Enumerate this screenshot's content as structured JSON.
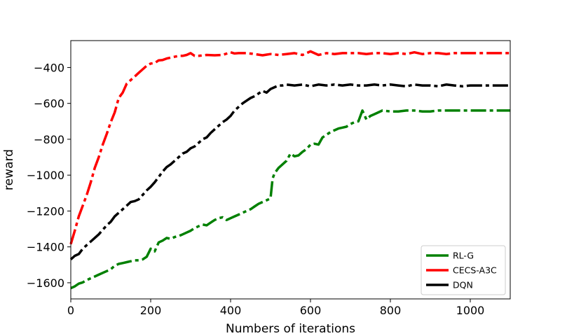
{
  "chart_data": {
    "type": "line",
    "title": "",
    "xlabel": "Numbers of iterations",
    "ylabel": "reward",
    "xlim": [
      0,
      1100
    ],
    "ylim": [
      -1690,
      -250
    ],
    "xticks": [
      0,
      200,
      400,
      600,
      800,
      1000
    ],
    "yticks": [
      -1600,
      -1400,
      -1200,
      -1000,
      -800,
      -600,
      -400
    ],
    "grid": false,
    "legend_position": "lower-right",
    "series": [
      {
        "name": "RL-G",
        "color": "#008000",
        "x": [
          0,
          10,
          20,
          30,
          40,
          50,
          60,
          70,
          80,
          90,
          100,
          110,
          120,
          130,
          140,
          150,
          160,
          170,
          180,
          190,
          200,
          210,
          220,
          230,
          240,
          250,
          260,
          270,
          280,
          290,
          300,
          310,
          320,
          330,
          340,
          350,
          360,
          370,
          380,
          390,
          400,
          410,
          420,
          430,
          440,
          450,
          460,
          470,
          480,
          490,
          500,
          505,
          510,
          520,
          530,
          540,
          550,
          560,
          570,
          580,
          590,
          600,
          610,
          620,
          630,
          640,
          650,
          660,
          670,
          680,
          690,
          700,
          710,
          720,
          730,
          740,
          750,
          760,
          770,
          780,
          800,
          820,
          840,
          860,
          880,
          900,
          920,
          940,
          960,
          980,
          1000,
          1020,
          1040,
          1060,
          1080,
          1100
        ],
        "values": [
          -1630,
          -1620,
          -1605,
          -1598,
          -1585,
          -1575,
          -1565,
          -1555,
          -1545,
          -1535,
          -1525,
          -1505,
          -1495,
          -1490,
          -1485,
          -1480,
          -1475,
          -1475,
          -1470,
          -1455,
          -1410,
          -1425,
          -1375,
          -1365,
          -1350,
          -1355,
          -1345,
          -1340,
          -1330,
          -1320,
          -1310,
          -1295,
          -1285,
          -1275,
          -1280,
          -1265,
          -1250,
          -1240,
          -1235,
          -1250,
          -1240,
          -1230,
          -1220,
          -1210,
          -1200,
          -1190,
          -1175,
          -1160,
          -1150,
          -1140,
          -1130,
          -1020,
          -990,
          -960,
          -940,
          -920,
          -880,
          -895,
          -890,
          -870,
          -855,
          -830,
          -825,
          -830,
          -790,
          -775,
          -760,
          -750,
          -740,
          -735,
          -730,
          -715,
          -705,
          -700,
          -640,
          -690,
          -670,
          -660,
          -650,
          -640,
          -645,
          -645,
          -640,
          -640,
          -645,
          -645,
          -640,
          -640,
          -640,
          -640,
          -640,
          -640,
          -640,
          -640,
          -640,
          -640
        ]
      },
      {
        "name": "CECS-A3C",
        "color": "#ff0000",
        "x": [
          0,
          10,
          20,
          30,
          40,
          50,
          60,
          70,
          80,
          90,
          100,
          110,
          120,
          130,
          140,
          150,
          160,
          170,
          180,
          190,
          200,
          210,
          220,
          230,
          240,
          250,
          260,
          270,
          280,
          290,
          300,
          310,
          320,
          340,
          360,
          380,
          400,
          410,
          420,
          440,
          460,
          480,
          500,
          520,
          540,
          560,
          580,
          600,
          620,
          640,
          660,
          680,
          700,
          720,
          740,
          760,
          780,
          800,
          820,
          840,
          860,
          880,
          900,
          920,
          940,
          960,
          980,
          1000,
          1020,
          1040,
          1060,
          1080,
          1100
        ],
        "values": [
          -1385,
          -1310,
          -1230,
          -1170,
          -1110,
          -1040,
          -960,
          -900,
          -830,
          -770,
          -705,
          -650,
          -570,
          -540,
          -490,
          -470,
          -450,
          -430,
          -410,
          -390,
          -378,
          -375,
          -360,
          -358,
          -350,
          -345,
          -340,
          -335,
          -335,
          -330,
          -320,
          -335,
          -335,
          -330,
          -332,
          -330,
          -315,
          -322,
          -320,
          -320,
          -325,
          -332,
          -325,
          -330,
          -325,
          -320,
          -330,
          -310,
          -330,
          -320,
          -325,
          -320,
          -320,
          -320,
          -325,
          -320,
          -320,
          -325,
          -320,
          -325,
          -315,
          -325,
          -320,
          -320,
          -325,
          -320,
          -320,
          -320,
          -320,
          -320,
          -320,
          -320,
          -320
        ]
      },
      {
        "name": "DQN",
        "color": "#000000",
        "x": [
          0,
          10,
          20,
          30,
          40,
          50,
          60,
          70,
          80,
          90,
          100,
          110,
          120,
          130,
          140,
          150,
          160,
          170,
          180,
          190,
          200,
          210,
          220,
          230,
          240,
          250,
          260,
          270,
          280,
          290,
          300,
          310,
          320,
          330,
          340,
          350,
          360,
          370,
          380,
          390,
          400,
          410,
          420,
          430,
          440,
          450,
          460,
          470,
          480,
          490,
          500,
          510,
          520,
          530,
          540,
          560,
          580,
          600,
          620,
          640,
          660,
          680,
          700,
          720,
          740,
          760,
          780,
          800,
          820,
          840,
          860,
          880,
          900,
          920,
          940,
          960,
          980,
          1000,
          1020,
          1040,
          1060,
          1080,
          1100
        ],
        "values": [
          -1470,
          -1450,
          -1440,
          -1410,
          -1390,
          -1370,
          -1350,
          -1330,
          -1305,
          -1280,
          -1260,
          -1230,
          -1210,
          -1190,
          -1170,
          -1150,
          -1145,
          -1135,
          -1110,
          -1085,
          -1065,
          -1040,
          -1010,
          -980,
          -955,
          -940,
          -920,
          -900,
          -880,
          -870,
          -850,
          -840,
          -820,
          -800,
          -790,
          -765,
          -745,
          -725,
          -705,
          -690,
          -670,
          -640,
          -620,
          -600,
          -585,
          -570,
          -560,
          -545,
          -530,
          -540,
          -520,
          -510,
          -500,
          -500,
          -495,
          -500,
          -495,
          -505,
          -495,
          -500,
          -495,
          -500,
          -495,
          -500,
          -500,
          -495,
          -500,
          -495,
          -500,
          -505,
          -495,
          -500,
          -500,
          -505,
          -495,
          -500,
          -505,
          -500,
          -500,
          -500,
          -500,
          -500,
          -500
        ]
      }
    ]
  }
}
